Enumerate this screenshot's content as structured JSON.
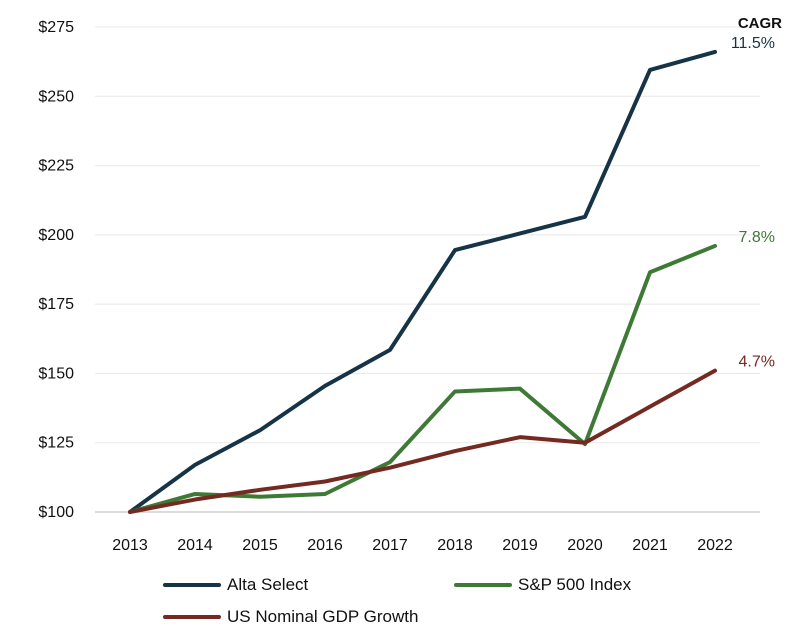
{
  "chart_data": {
    "type": "line",
    "title": "",
    "xlabel": "",
    "ylabel": "",
    "categories": [
      "2013",
      "2014",
      "2015",
      "2016",
      "2017",
      "2018",
      "2019",
      "2020",
      "2021",
      "2022"
    ],
    "ylim": [
      100,
      275
    ],
    "yticks": [
      100,
      125,
      150,
      175,
      200,
      225,
      250,
      275
    ],
    "ytick_labels": [
      "$100",
      "$125",
      "$150",
      "$175",
      "$200",
      "$225",
      "$250",
      "$275"
    ],
    "grid": "horizontal",
    "legend_position": "bottom",
    "cagr_header": "CAGR",
    "series": [
      {
        "name": "Alta Select",
        "color": "#173446",
        "cagr": "11.5%",
        "values": [
          100,
          117,
          129.5,
          145.5,
          158.5,
          194.5,
          200.5,
          206.5,
          259.5,
          266
        ]
      },
      {
        "name": "S&P 500 Index",
        "color": "#3e7a36",
        "cagr": "7.8%",
        "values": [
          100,
          106.5,
          105.5,
          106.5,
          118,
          143.5,
          144.5,
          124.5,
          186.5,
          196
        ]
      },
      {
        "name": "US Nominal GDP Growth",
        "color": "#742a21",
        "cagr": "4.7%",
        "values": [
          100,
          104.5,
          108,
          111,
          116,
          122,
          127,
          125,
          138,
          151
        ]
      }
    ]
  }
}
